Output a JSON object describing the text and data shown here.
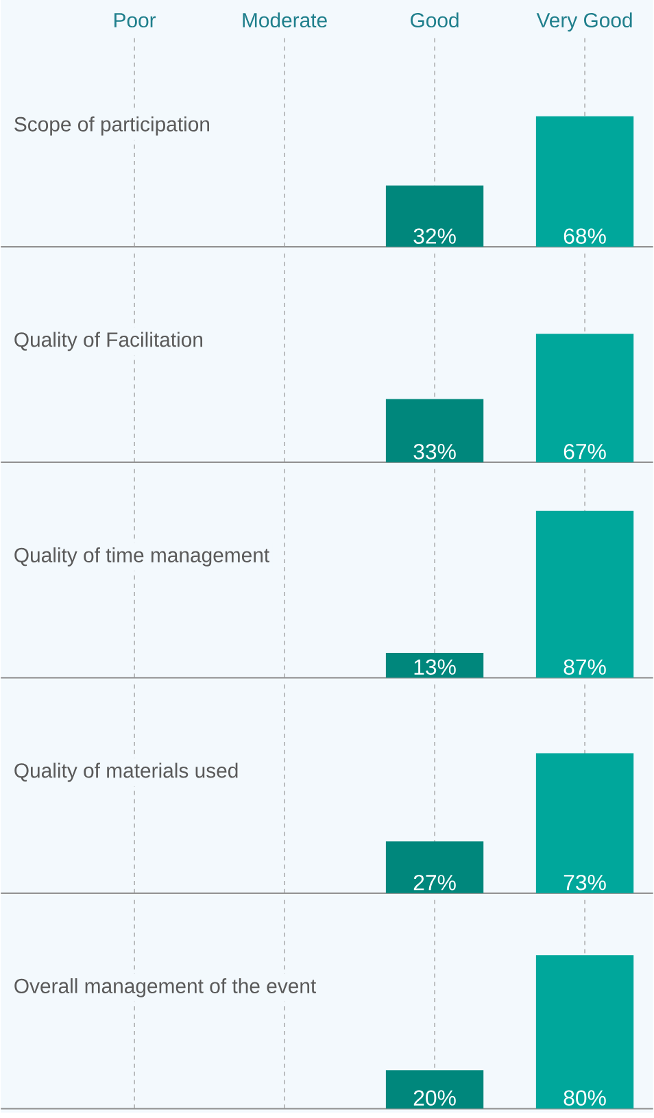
{
  "chart_data": [
    {
      "type": "bar",
      "title": "Scope of participation",
      "categories": [
        "Poor",
        "Moderate",
        "Good",
        "Very Good"
      ],
      "values": [
        null,
        null,
        32,
        68
      ],
      "colors": [
        "#00877c",
        "#00877c",
        "#00877c",
        "#00a79b"
      ],
      "value_labels": [
        null,
        null,
        "32%",
        "68%"
      ],
      "grid": "x",
      "tick_labels": "x"
    },
    {
      "type": "bar",
      "title": "Quality of Facilitation",
      "categories": [
        null,
        null,
        null,
        null
      ],
      "values": [
        null,
        null,
        33,
        67
      ],
      "colors": [
        "#00877c",
        "#00877c",
        "#00877c",
        "#00a79b"
      ],
      "value_labels": [
        null,
        null,
        "33%",
        "67%"
      ],
      "grid": "x"
    },
    {
      "type": "bar",
      "title": "Quality of time management",
      "categories": [
        null,
        null,
        null,
        null
      ],
      "values": [
        null,
        null,
        13,
        87
      ],
      "colors": [
        "#00877c",
        "#00877c",
        "#00877c",
        "#00a79b"
      ],
      "value_labels": [
        null,
        null,
        "13%",
        "87%"
      ],
      "grid": "x"
    },
    {
      "type": "bar",
      "title": "Quality of materials used",
      "categories": [
        null,
        null,
        null,
        null
      ],
      "values": [
        null,
        null,
        27,
        73
      ],
      "colors": [
        "#00877c",
        "#00877c",
        "#00877c",
        "#00a79b"
      ],
      "value_labels": [
        null,
        null,
        "27%",
        "73%"
      ],
      "grid": "x"
    },
    {
      "type": "bar",
      "title": "Overall management of the event",
      "categories": [
        null,
        null,
        null,
        null
      ],
      "values": [
        null,
        null,
        20,
        80
      ],
      "colors": [
        "#00877c",
        "#00877c",
        "#00877c",
        "#00a79b"
      ],
      "value_labels": [
        null,
        null,
        "20%",
        "80%"
      ],
      "grid": "x"
    }
  ]
}
